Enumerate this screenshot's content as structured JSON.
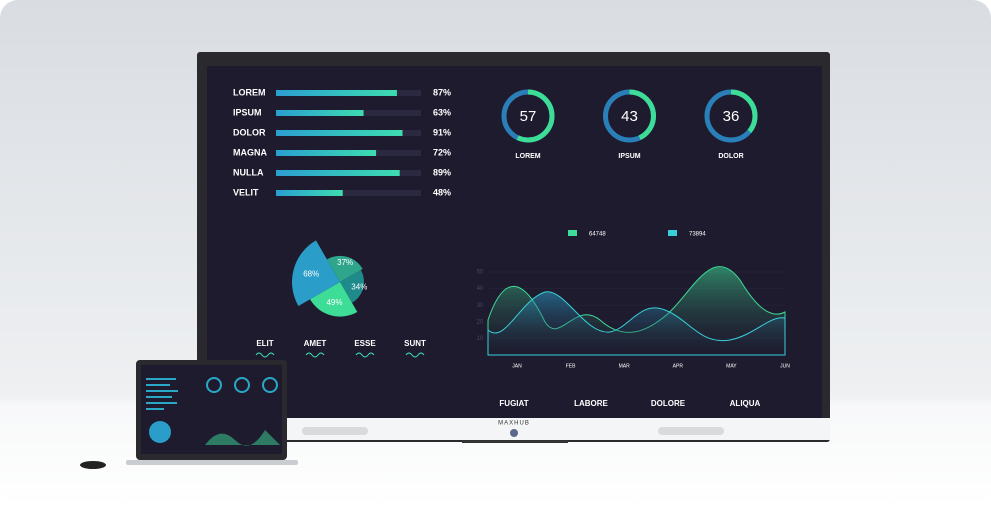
{
  "brand": "MAXHUB",
  "bars": [
    {
      "label": "LOREM",
      "value": 87,
      "value_label": "87%"
    },
    {
      "label": "IPSUM",
      "value": 63,
      "value_label": "63%"
    },
    {
      "label": "DOLOR",
      "value": 91,
      "value_label": "91%"
    },
    {
      "label": "MAGNA",
      "value": 72,
      "value_label": "72%"
    },
    {
      "label": "NULLA",
      "value": 89,
      "value_label": "89%"
    },
    {
      "label": "VELIT",
      "value": 48,
      "value_label": "48%"
    }
  ],
  "gauges": [
    {
      "value": 57,
      "label": "LOREM"
    },
    {
      "value": 43,
      "label": "IPSUM"
    },
    {
      "value": 36,
      "label": "DOLOR"
    }
  ],
  "pie": [
    {
      "value": 37,
      "value_label": "37%"
    },
    {
      "value": 34,
      "value_label": "34%"
    },
    {
      "value": 49,
      "value_label": "49%"
    },
    {
      "value": 68,
      "value_label": "68%"
    }
  ],
  "pie_legend": [
    "ELIT",
    "AMET",
    "ESSE",
    "SUNT"
  ],
  "wave_legend": [
    "64748",
    "73894"
  ],
  "wave_yticks": [
    50,
    40,
    30,
    20,
    10
  ],
  "wave_months": [
    "JAN",
    "FEB",
    "MAR",
    "APR",
    "MAY",
    "JUN"
  ],
  "footer": [
    "FUGIAT",
    "LABORE",
    "DOLORE",
    "ALIQUA"
  ]
}
